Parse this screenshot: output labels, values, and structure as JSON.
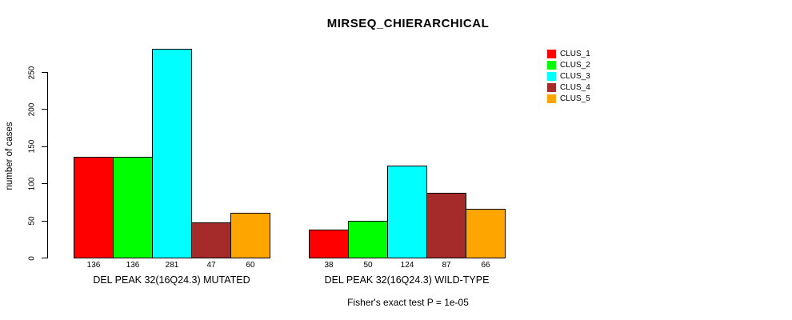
{
  "chart_data": {
    "type": "bar",
    "title": "MIRSEQ_CHIERARCHICAL",
    "ylabel": "number of cases",
    "xlabel": "",
    "ylim": [
      0,
      290
    ],
    "yticks": [
      0,
      50,
      100,
      150,
      200,
      250
    ],
    "grid": false,
    "legend_position": "top-right-outside-bars",
    "bar_value_labels_shown": true,
    "categories": [
      "DEL PEAK 32(16Q24.3) MUTATED",
      "DEL PEAK 32(16Q24.3) WILD-TYPE"
    ],
    "groups": [
      {
        "label": "DEL PEAK 32(16Q24.3) MUTATED",
        "values": [
          136,
          136,
          281,
          47,
          60
        ]
      },
      {
        "label": "DEL PEAK 32(16Q24.3) WILD-TYPE",
        "values": [
          38,
          50,
          124,
          87,
          66
        ]
      }
    ],
    "series": [
      {
        "name": "CLUS_1",
        "color": "#FF0000"
      },
      {
        "name": "CLUS_2",
        "color": "#00FF00"
      },
      {
        "name": "CLUS_3",
        "color": "#00FFFF"
      },
      {
        "name": "CLUS_4",
        "color": "#A52A2A"
      },
      {
        "name": "CLUS_5",
        "color": "#FFA500"
      }
    ],
    "annotation": "Fisher's exact test P = 1e-05",
    "colors": {
      "background": "#FFFFFF",
      "axis": "#000000",
      "bar_border": "#000000",
      "text": "#000000"
    }
  }
}
